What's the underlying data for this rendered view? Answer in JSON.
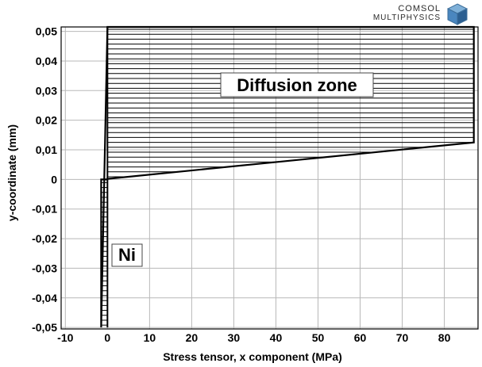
{
  "logo": {
    "line1": "COMSOL",
    "line2": "MULTIPHYSICS"
  },
  "chart_data": {
    "type": "area",
    "title": "",
    "xlabel": "Stress tensor, x component (MPa)",
    "ylabel": "y-coordinate (mm)",
    "xlim": [
      -11,
      88
    ],
    "ylim": [
      -0.0505,
      0.0515
    ],
    "xticks": [
      -10,
      0,
      10,
      20,
      30,
      40,
      50,
      60,
      70,
      80
    ],
    "xtick_labels": [
      "-10",
      "0",
      "10",
      "20",
      "30",
      "40",
      "50",
      "60",
      "70",
      "80"
    ],
    "yticks": [
      0.05,
      0.04,
      0.03,
      0.02,
      0.01,
      0,
      -0.01,
      -0.02,
      -0.03,
      -0.04,
      -0.05
    ],
    "ytick_labels": [
      "0,05",
      "0,04",
      "0,03",
      "0,02",
      "0,01",
      "0",
      "-0,01",
      "-0,02",
      "-0,03",
      "-0,04",
      "-0,05"
    ],
    "grid": true,
    "series": [
      {
        "x": [
          -1.5,
          -1.5,
          0,
          0,
          87,
          87,
          0
        ],
        "y": [
          -0.05,
          0,
          0,
          0.0002,
          0.0125,
          0.0515,
          0.0515
        ]
      }
    ],
    "regions": [
      {
        "label": "Diffusion zone",
        "y_range": [
          0,
          0.0515
        ]
      },
      {
        "label": "Ni",
        "y_range": [
          -0.05,
          0
        ]
      }
    ],
    "fill_pattern": "horizontal-hatch",
    "colors": {
      "line": "#000000",
      "hatch": "#000000",
      "grid": "#b8b8b8"
    }
  }
}
